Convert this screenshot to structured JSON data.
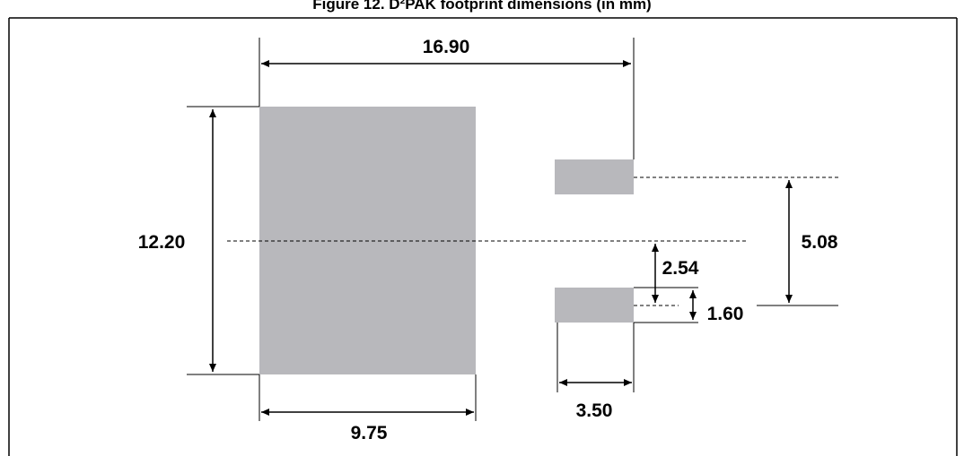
{
  "figure": {
    "title": "Figure 12. D²PAK footprint dimensions (in mm)"
  },
  "dimensions": {
    "overall_length": "16.90",
    "large_pad_height": "12.20",
    "large_pad_width": "9.75",
    "small_pad_width": "3.50",
    "pin_pitch": "5.08",
    "half_pitch": "2.54",
    "small_pad_height": "1.60"
  },
  "colors": {
    "pad": "#b8b8bc",
    "line": "#000000",
    "border": "#000000"
  }
}
